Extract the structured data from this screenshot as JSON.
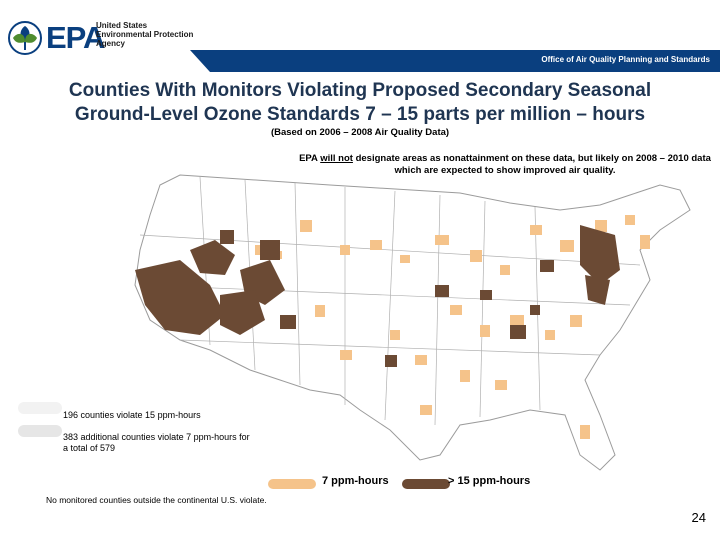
{
  "header": {
    "logo_text": "EPA",
    "agency_lines": [
      "United States",
      "Environmental Protection",
      "Agency"
    ],
    "office": "Office of Air Quality Planning and Standards",
    "band_color": "#0a3f7f"
  },
  "title_lines": [
    "Counties With Monitors Violating Proposed Secondary Seasonal",
    "Ground-Level Ozone Standards 7 – 15 parts per million – hours"
  ],
  "subtitle": "(Based on 2006 – 2008 Air Quality Data)",
  "note": {
    "prefix": "EPA ",
    "emphasis": "will not",
    "suffix": " designate areas as nonattainment on these data, but likely on 2008 – 2010 data which are expected to show improved air quality."
  },
  "legend": {
    "left_items": [
      "196 counties violate 15 ppm-hours",
      "383 additional counties violate 7 ppm-hours for a total of 579"
    ],
    "bottom_items": [
      {
        "label": "7 ppm-hours",
        "color": "#f5c38a"
      },
      {
        "label": "> 15 ppm-hours",
        "color": "#6b4a34"
      }
    ]
  },
  "footer_note": "No monitored counties outside the continental U.S. violate.",
  "page_number": "24",
  "colors": {
    "light_county": "#f5c38a",
    "dark_county": "#6b4a34",
    "title": "#1f3552",
    "state_line": "#9b9b9b"
  }
}
